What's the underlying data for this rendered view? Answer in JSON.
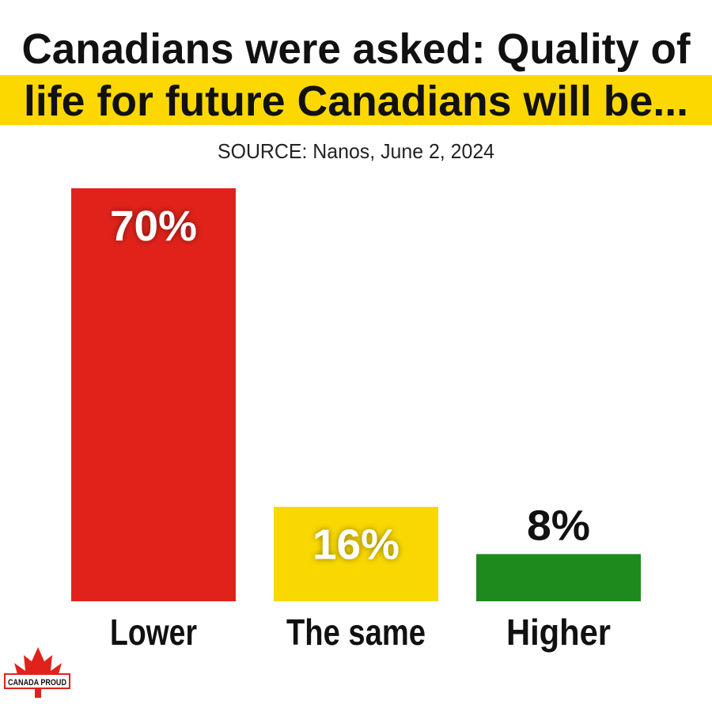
{
  "chart_data": {
    "type": "bar",
    "title": [
      "Canadians were asked: Quality of",
      "life for future Canadians will be..."
    ],
    "subtitle": "SOURCE: Nanos, June 2, 2024",
    "categories": [
      "Lower",
      "The same",
      "Higher"
    ],
    "values": [
      70,
      16,
      8
    ],
    "value_labels": [
      "70%",
      "16%",
      "8%"
    ],
    "colors": [
      "#e0221b",
      "#f8d800",
      "#1e8a1e"
    ],
    "logo": "CANADA PROUD"
  }
}
